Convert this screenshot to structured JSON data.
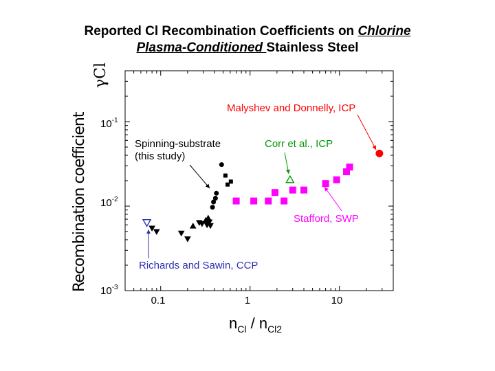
{
  "title": {
    "line1_prefix": "Reported Cl Recombination Coefficients on ",
    "line1_underlined": "Chlorine",
    "line2_underlined": "Plasma-Conditioned ",
    "line2_suffix": "Stainless Steel"
  },
  "colors": {
    "black_series": "#000000",
    "magenta": "#ff00ff",
    "red": "#ff0000",
    "green": "#009900",
    "blue": "#2f2fb0"
  },
  "chart_data": {
    "type": "scatter",
    "xscale": "log",
    "yscale": "log",
    "xlim": [
      0.04,
      40
    ],
    "ylim": [
      0.001,
      0.4
    ],
    "ylabel": "γCl",
    "xlabel": {
      "main": "n",
      "sub1": "Cl",
      "sep": " / n",
      "sub2": "Cl2"
    },
    "overlay_text": "Recombination coefficient",
    "x_ticks": [
      {
        "value": 0.1,
        "label": "0.1"
      },
      {
        "value": 1,
        "label": "1"
      },
      {
        "value": 10,
        "label": "10"
      }
    ],
    "y_ticks": [
      {
        "value": 0.1,
        "base": "10",
        "exp": "-1"
      },
      {
        "value": 0.01,
        "base": "10",
        "exp": "-2"
      },
      {
        "value": 0.001,
        "base": "10",
        "exp": "-3"
      }
    ],
    "series": [
      {
        "name": "Spinning-substrate (this study)",
        "marker": "circle",
        "color": "#000000",
        "filled": true,
        "points": [
          [
            0.38,
            0.0097
          ],
          [
            0.39,
            0.0112
          ],
          [
            0.41,
            0.0124
          ],
          [
            0.42,
            0.0142
          ],
          [
            0.48,
            0.031
          ]
        ]
      },
      {
        "name": "Spinning-substrate (this study)",
        "marker": "square",
        "color": "#000000",
        "filled": true,
        "points": [
          [
            0.53,
            0.023
          ],
          [
            0.56,
            0.018
          ],
          [
            0.61,
            0.0195
          ]
        ]
      },
      {
        "name": "Richards and Sawin, CCP",
        "marker": "triangle-down",
        "color": "#000000",
        "filled": true,
        "points": [
          [
            0.08,
            0.0055
          ],
          [
            0.09,
            0.005
          ],
          [
            0.17,
            0.0048
          ],
          [
            0.2,
            0.0041
          ],
          [
            0.27,
            0.0064
          ],
          [
            0.29,
            0.0062
          ],
          [
            0.33,
            0.006
          ],
          [
            0.35,
            0.0065
          ],
          [
            0.36,
            0.0059
          ]
        ]
      },
      {
        "name": "Richards and Sawin, CCP",
        "marker": "triangle-up",
        "color": "#000000",
        "filled": true,
        "points": [
          [
            0.23,
            0.0058
          ],
          [
            0.32,
            0.0068
          ],
          [
            0.34,
            0.0072
          ]
        ]
      },
      {
        "name": "Richards and Sawin, CCP",
        "marker": "triangle-down",
        "color": "#2f2fb0",
        "filled": false,
        "points": [
          [
            0.07,
            0.0064
          ]
        ]
      },
      {
        "name": "Corr et al., ICP",
        "marker": "triangle-up",
        "color": "#009900",
        "filled": false,
        "points": [
          [
            2.8,
            0.0205
          ]
        ]
      },
      {
        "name": "Stafford, SWP",
        "marker": "square",
        "color": "#ff00ff",
        "filled": true,
        "points": [
          [
            0.7,
            0.0115
          ],
          [
            1.1,
            0.0115
          ],
          [
            1.6,
            0.0115
          ],
          [
            2.4,
            0.0115
          ],
          [
            1.9,
            0.0145
          ],
          [
            3.0,
            0.0155
          ],
          [
            4.0,
            0.0155
          ],
          [
            7.0,
            0.0185
          ],
          [
            9.3,
            0.0205
          ],
          [
            12.0,
            0.0255
          ],
          [
            13.0,
            0.029
          ]
        ]
      },
      {
        "name": "Malyshev and Donnelly, ICP",
        "marker": "circle",
        "color": "#ff0000",
        "filled": true,
        "points": [
          [
            28.0,
            0.042
          ]
        ]
      }
    ],
    "annotations": [
      {
        "text": "Malyshev and Donnelly, ICP",
        "color": "#ff0000"
      },
      {
        "text": "Spinning-substrate",
        "color": "#000000"
      },
      {
        "text": "(this study)",
        "color": "#000000"
      },
      {
        "text": "Corr et al., ICP",
        "color": "#009900"
      },
      {
        "text": "Stafford, SWP",
        "color": "#ff00ff"
      },
      {
        "text": "Richards and Sawin, CCP",
        "color": "#2f2fb0"
      }
    ]
  }
}
